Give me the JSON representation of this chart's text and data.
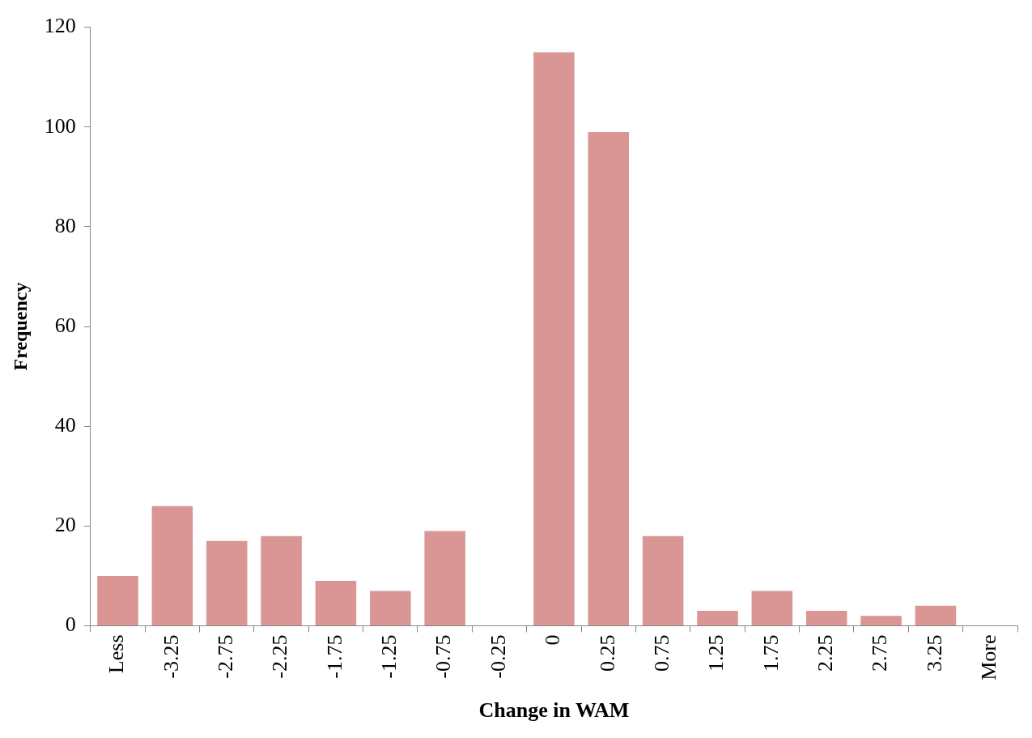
{
  "chart_data": {
    "type": "bar",
    "xlabel": "Change in WAM",
    "ylabel": "Frequency",
    "categories": [
      "Less",
      "-3.25",
      "-2.75",
      "-2.25",
      "-1.75",
      "-1.25",
      "-0.75",
      "-0.25",
      "0",
      "0.25",
      "0.75",
      "1.25",
      "1.75",
      "2.25",
      "2.75",
      "3.25",
      "More"
    ],
    "values": [
      10,
      24,
      17,
      18,
      9,
      7,
      19,
      0,
      115,
      99,
      18,
      3,
      7,
      3,
      2,
      4,
      null
    ],
    "color": "#d99694",
    "ylim": [
      0,
      120
    ],
    "yticks": [
      0,
      20,
      40,
      60,
      80,
      100,
      120
    ],
    "legend": false
  }
}
